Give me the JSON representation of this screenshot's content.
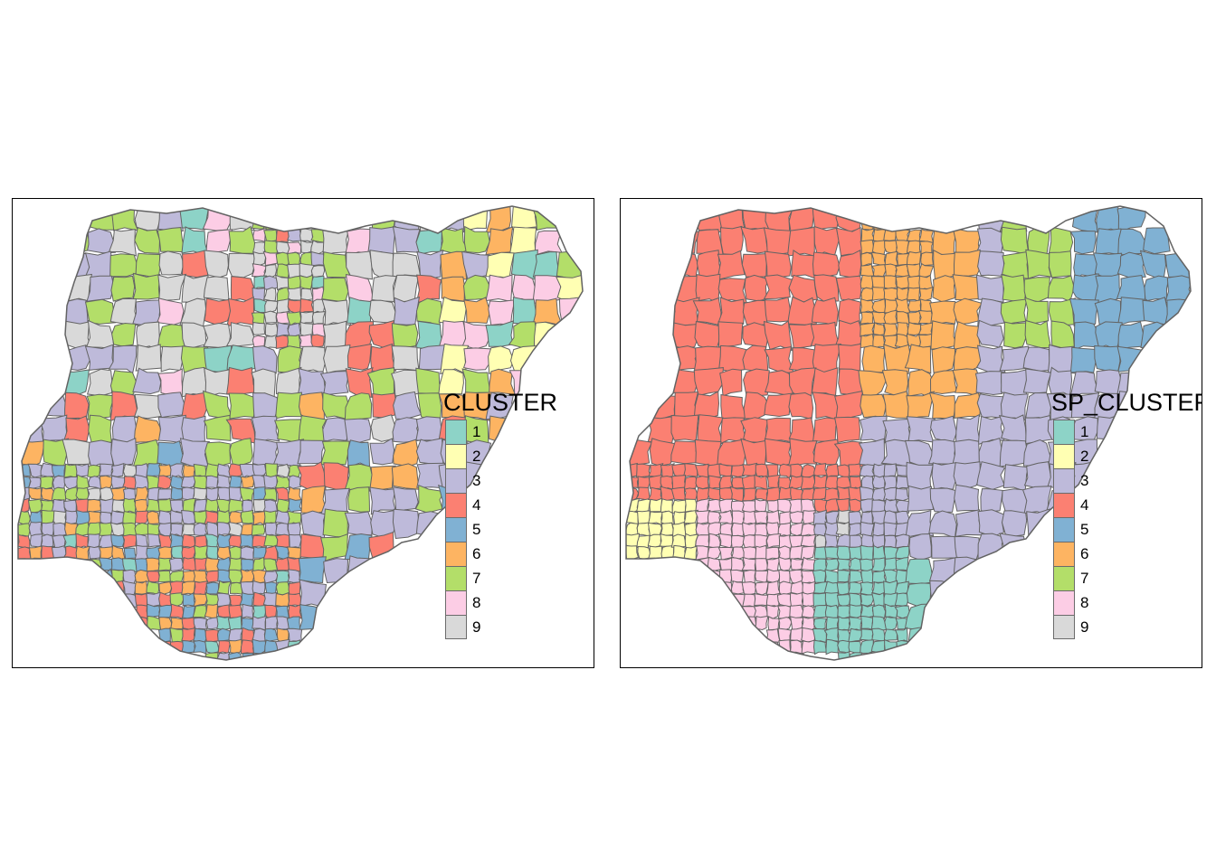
{
  "maps": [
    {
      "id": "left",
      "legend_title": "CLUSTER",
      "pattern": "mixed",
      "polygon_stroke": "#636363"
    },
    {
      "id": "right",
      "legend_title": "SP_CLUSTER",
      "pattern": "regional",
      "polygon_stroke": "#636363"
    }
  ],
  "legend_items": [
    {
      "label": "1",
      "color": "#8DD3C7"
    },
    {
      "label": "2",
      "color": "#FFFFB3"
    },
    {
      "label": "3",
      "color": "#BEBADA"
    },
    {
      "label": "4",
      "color": "#FB8072"
    },
    {
      "label": "5",
      "color": "#80B1D3"
    },
    {
      "label": "6",
      "color": "#FDB462"
    },
    {
      "label": "7",
      "color": "#B3DE69"
    },
    {
      "label": "8",
      "color": "#FCCDE5"
    },
    {
      "label": "9",
      "color": "#D9D9D9"
    }
  ]
}
